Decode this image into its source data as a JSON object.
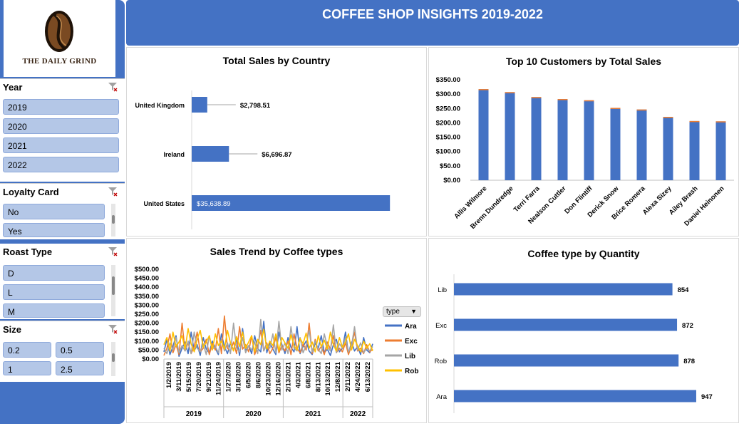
{
  "header": {
    "title": "COFFEE SHOP INSIGHTS 2019-2022"
  },
  "logo": {
    "brand": "THE DAILY GRIND"
  },
  "slicers": {
    "year": {
      "title": "Year",
      "items": [
        "2019",
        "2020",
        "2021",
        "2022"
      ]
    },
    "loyalty": {
      "title": "Loyalty Card",
      "items": [
        "No",
        "Yes"
      ]
    },
    "roast": {
      "title": "Roast Type",
      "items": [
        "D",
        "L",
        "M"
      ]
    },
    "size": {
      "title": "Size",
      "items": [
        "0.2",
        "0.5",
        "1",
        "2.5"
      ]
    }
  },
  "charts": {
    "country": {
      "title": "Total Sales by Country",
      "chart_data": {
        "type": "bar",
        "orientation": "horizontal",
        "categories": [
          "United Kingdom",
          "Ireland",
          "United States"
        ],
        "values": [
          2798.51,
          6696.87,
          35638.89
        ],
        "value_labels": [
          "$2,798.51",
          "$6,696.87",
          "$35,638.89"
        ],
        "color": "#4472c4"
      }
    },
    "customers": {
      "title": "Top 10 Customers by Total Sales",
      "chart_data": {
        "type": "bar",
        "categories": [
          "Allis Wilmore",
          "Brenn Dundredge",
          "Terri Farra",
          "Nealson Cuttler",
          "Don Flintiff",
          "Derick Snow",
          "Brice Romera",
          "Alexa Sizey",
          "Ailey Brash",
          "Daniel Heinonen"
        ],
        "values": [
          317.5,
          307.0,
          289.8,
          282.9,
          278.6,
          252.1,
          246.5,
          220.8,
          206.3,
          205.2
        ],
        "ylim": [
          0,
          350
        ],
        "yticks": [
          0,
          50,
          100,
          150,
          200,
          250,
          300,
          350
        ],
        "ytick_labels": [
          "$0.00",
          "$50.00",
          "$100.00",
          "$150.00",
          "$200.00",
          "$250.00",
          "$300.00",
          "$350.00"
        ],
        "color": "#4472c4"
      }
    },
    "trend": {
      "title": "Sales Trend by Coffee types",
      "legend_title": "type",
      "chart_data": {
        "type": "line",
        "ylim": [
          0,
          500
        ],
        "yticks": [
          0,
          50,
          100,
          150,
          200,
          250,
          300,
          350,
          400,
          450,
          500
        ],
        "ytick_labels": [
          "$0.00",
          "$50.00",
          "$100.00",
          "$150.00",
          "$200.00",
          "$250.00",
          "$300.00",
          "$350.00",
          "$400.00",
          "$450.00",
          "$500.00"
        ],
        "date_labels": [
          "1/2/2019",
          "3/11/2019",
          "5/15/2019",
          "7/20/2019",
          "9/21/2019",
          "11/24/2019",
          "1/27/2020",
          "3/18/2020",
          "6/5/2020",
          "8/6/2020",
          "10/23/2020",
          "12/16/2020",
          "2/13/2021",
          "4/3/2021",
          "6/8/2021",
          "8/13/2021",
          "10/13/2021",
          "12/8/2021",
          "2/11/2022",
          "4/24/2022",
          "6/13/2022"
        ],
        "year_groups": [
          {
            "label": "2019",
            "span": 6
          },
          {
            "label": "2020",
            "span": 6
          },
          {
            "label": "2021",
            "span": 6
          },
          {
            "label": "2022",
            "span": 3
          }
        ],
        "series": [
          {
            "name": "Ara",
            "color": "#4472c4",
            "values": [
              40,
              110,
              25,
              70,
              130,
              15,
              60,
              95,
              30,
              150,
              45,
              80,
              20,
              120,
              55,
              35,
              100,
              60,
              25,
              140,
              70,
              30,
              90,
              50,
              110,
              20,
              170,
              45,
              75,
              30,
              130,
              60,
              40,
              210,
              35,
              90,
              55,
              25,
              150,
              80,
              30,
              120,
              65,
              40,
              180,
              30,
              70,
              100,
              45,
              25,
              90,
              60,
              130,
              35,
              55,
              20,
              80,
              110,
              40,
              60,
              150,
              30,
              95,
              45,
              70,
              25,
              120,
              50,
              35,
              85
            ]
          },
          {
            "name": "Exc",
            "color": "#ed7d31",
            "values": [
              20,
              60,
              140,
              35,
              80,
              25,
              200,
              45,
              90,
              30,
              70,
              150,
              40,
              60,
              110,
              25,
              85,
              50,
              170,
              30,
              240,
              60,
              45,
              95,
              30,
              180,
              55,
              80,
              40,
              130,
              25,
              70,
              160,
              45,
              90,
              30,
              60,
              120,
              35,
              75,
              45,
              100,
              25,
              140,
              60,
              35,
              85,
              50,
              200,
              30,
              110,
              45,
              70,
              25,
              95,
              55,
              130,
              35,
              60,
              40,
              90,
              25,
              75,
              150,
              45,
              60,
              30,
              80,
              40,
              55
            ]
          },
          {
            "name": "Lib",
            "color": "#a5a5a5",
            "values": [
              60,
              30,
              90,
              50,
              120,
              35,
              75,
              45,
              100,
              30,
              150,
              60,
              40,
              85,
              25,
              130,
              55,
              70,
              35,
              110,
              45,
              90,
              30,
              200,
              60,
              40,
              120,
              35,
              75,
              50,
              95,
              30,
              220,
              45,
              80,
              60,
              140,
              35,
              210,
              50,
              90,
              30,
              180,
              60,
              45,
              120,
              35,
              75,
              160,
              40,
              100,
              55,
              30,
              140,
              70,
              45,
              190,
              35,
              85,
              60,
              120,
              40,
              75,
              180,
              50,
              90,
              35,
              60,
              45,
              70
            ]
          },
          {
            "name": "Rob",
            "color": "#ffc000",
            "values": [
              80,
              120,
              45,
              150,
              70,
              95,
              130,
              55,
              170,
              85,
              40,
              110,
              160,
              65,
              95,
              130,
              50,
              140,
              75,
              100,
              55,
              160,
              90,
              45,
              125,
              70,
              150,
              60,
              95,
              130,
              40,
              110,
              80,
              165,
              55,
              100,
              75,
              140,
              45,
              120,
              90,
              60,
              135,
              75,
              50,
              115,
              85,
              145,
              60,
              95,
              40,
              130,
              70,
              105,
              55,
              150,
              80,
              45,
              120,
              65,
              95,
              140,
              50,
              110,
              75,
              40,
              100,
              60,
              85,
              45
            ]
          }
        ]
      }
    },
    "quantity": {
      "title": "Coffee type by Quantity",
      "chart_data": {
        "type": "bar",
        "orientation": "horizontal",
        "categories": [
          "Lib",
          "Exc",
          "Rob",
          "Ara"
        ],
        "values": [
          854,
          872,
          878,
          947
        ],
        "value_labels": [
          "854",
          "872",
          "878",
          "947"
        ],
        "color": "#4472c4"
      }
    }
  }
}
